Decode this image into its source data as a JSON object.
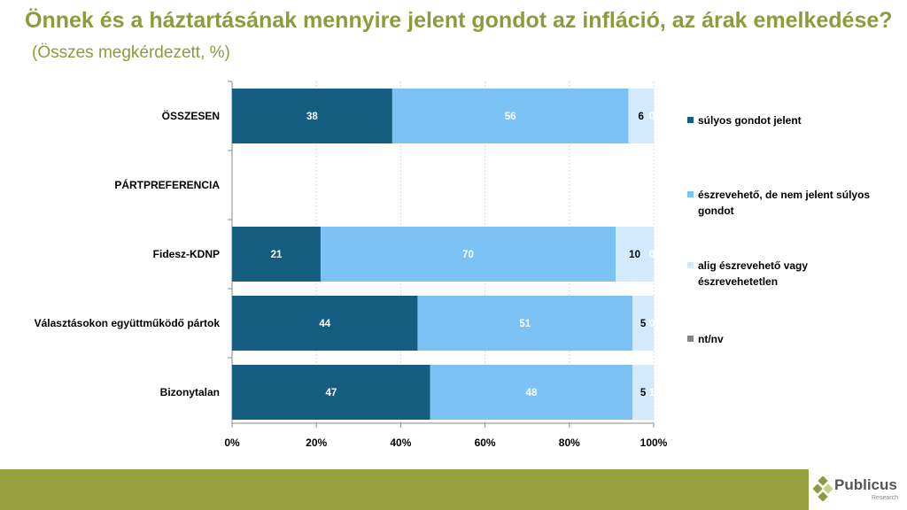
{
  "title": "Önnek és a háztartásának mennyire jelent gondot az infláció, az árak emelkedése?",
  "subtitle": "(Összes megkérdezett, %)",
  "chart_data": {
    "type": "bar",
    "stacked": true,
    "orientation": "horizontal",
    "categories": [
      "ÖSSZESEN",
      "PÁRTPREFERENCIA",
      "Fidesz-KDNP",
      "Választásokon együttműködő pártok",
      "Bizonytalan"
    ],
    "series": [
      {
        "name": "súlyos gondot jelent",
        "color": "#155e82",
        "values": [
          38,
          null,
          21,
          44,
          47
        ]
      },
      {
        "name": "észrevehető, de nem jelent súlyos gondot",
        "color": "#7cc2f4",
        "values": [
          56,
          null,
          70,
          51,
          48
        ]
      },
      {
        "name": "alig észrevehető vagy észrevehetetlen",
        "color": "#d2eafb",
        "values": [
          6,
          null,
          10,
          5,
          5
        ]
      },
      {
        "name": "nt/nv",
        "color": "#858585",
        "values": [
          0,
          null,
          0,
          0,
          1
        ]
      }
    ],
    "xticks": [
      "0%",
      "20%",
      "40%",
      "60%",
      "80%",
      "100%"
    ],
    "xlim": [
      0,
      100
    ],
    "legend": "right"
  },
  "legend_lines": [
    [
      "súlyos gondot jelent"
    ],
    [
      "észrevehető, de nem jelent súlyos",
      "gondot"
    ],
    [
      "alig észrevehető vagy",
      "észrevehetetlen"
    ],
    [
      "nt/nv"
    ]
  ],
  "logo": {
    "name": "Publicus",
    "sub": "Research"
  }
}
